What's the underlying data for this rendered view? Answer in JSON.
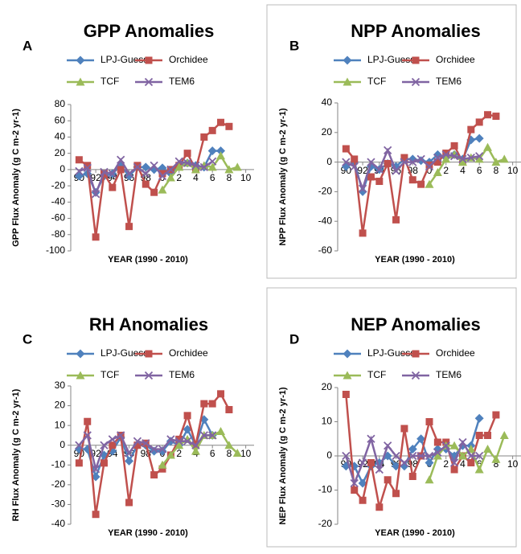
{
  "chart_data": [
    {
      "type": "line",
      "label": "A",
      "title": "GPP Anomalies",
      "x_label": "YEAR (1990 - 2010)",
      "y_label": "GPP Flux Anomaly (g C m-2 yr-1)",
      "x": [
        1990,
        1991,
        1992,
        1993,
        1994,
        1995,
        1996,
        1997,
        1998,
        1999,
        2000,
        2001,
        2002,
        2003,
        2004,
        2005,
        2006,
        2007,
        2008,
        2009
      ],
      "xlim": [
        1989,
        2011
      ],
      "xticks": [
        {
          "value": 1990,
          "label": "90"
        },
        {
          "value": 1992,
          "label": "92"
        },
        {
          "value": 1994,
          "label": "94"
        },
        {
          "value": 1996,
          "label": "96"
        },
        {
          "value": 1998,
          "label": "98"
        },
        {
          "value": 2000,
          "label": "0"
        },
        {
          "value": 2002,
          "label": "2"
        },
        {
          "value": 2004,
          "label": "4"
        },
        {
          "value": 2006,
          "label": "6"
        },
        {
          "value": 2008,
          "label": "8"
        },
        {
          "value": 2010,
          "label": "10"
        }
      ],
      "ylim": [
        -100,
        80
      ],
      "yticks": [
        -100,
        -80,
        -60,
        -40,
        -20,
        0,
        20,
        40,
        60,
        80
      ],
      "series": [
        {
          "name": "LPJ-Guess",
          "color": "#4f81bd",
          "marker": "diamond",
          "values": [
            -8,
            -5,
            -28,
            -8,
            -5,
            5,
            -8,
            3,
            3,
            0,
            2,
            -5,
            5,
            8,
            5,
            3,
            23,
            23,
            null,
            null
          ]
        },
        {
          "name": "Orchidee",
          "color": "#c0504d",
          "marker": "square",
          "values": [
            12,
            5,
            -83,
            -5,
            -22,
            0,
            -70,
            5,
            -18,
            -28,
            -5,
            0,
            5,
            20,
            0,
            40,
            48,
            58,
            53,
            null
          ]
        },
        {
          "name": "TCF",
          "color": "#9bbb59",
          "marker": "triangle",
          "values": [
            null,
            null,
            null,
            null,
            null,
            null,
            null,
            null,
            null,
            null,
            -25,
            -10,
            3,
            8,
            0,
            5,
            3,
            17,
            0,
            3
          ]
        },
        {
          "name": "TEM6",
          "color": "#8064a2",
          "marker": "cross",
          "values": [
            -2,
            2,
            -30,
            -3,
            -5,
            12,
            -5,
            3,
            -5,
            5,
            -8,
            0,
            10,
            8,
            5,
            3,
            10,
            null,
            null,
            null
          ]
        }
      ]
    },
    {
      "type": "line",
      "label": "B",
      "title": "NPP Anomalies",
      "x_label": "YEAR (1990 - 2010)",
      "y_label": "NPP Flux Anomaly (g C m-2 yr-1)",
      "x": [
        1990,
        1991,
        1992,
        1993,
        1994,
        1995,
        1996,
        1997,
        1998,
        1999,
        2000,
        2001,
        2002,
        2003,
        2004,
        2005,
        2006,
        2007,
        2008,
        2009
      ],
      "xlim": [
        1989,
        2011
      ],
      "xticks": [
        {
          "value": 1990,
          "label": "90"
        },
        {
          "value": 1992,
          "label": "92"
        },
        {
          "value": 1994,
          "label": "94"
        },
        {
          "value": 1996,
          "label": "96"
        },
        {
          "value": 1998,
          "label": "98"
        },
        {
          "value": 2000,
          "label": "0"
        },
        {
          "value": 2002,
          "label": "2"
        },
        {
          "value": 2004,
          "label": "4"
        },
        {
          "value": 2006,
          "label": "6"
        },
        {
          "value": 2008,
          "label": "8"
        },
        {
          "value": 2010,
          "label": "10"
        }
      ],
      "ylim": [
        -60,
        40
      ],
      "yticks": [
        -60,
        -40,
        -20,
        0,
        20,
        40
      ],
      "series": [
        {
          "name": "LPJ-Guess",
          "color": "#4f81bd",
          "marker": "diamond",
          "values": [
            -3,
            0,
            -20,
            -3,
            -5,
            -1,
            -3,
            2,
            2,
            1,
            0,
            5,
            3,
            5,
            2,
            15,
            16,
            null,
            null,
            null
          ]
        },
        {
          "name": "Orchidee",
          "color": "#c0504d",
          "marker": "square",
          "values": [
            9,
            2,
            -48,
            -10,
            -13,
            -1,
            -39,
            3,
            -12,
            -15,
            -2,
            0,
            6,
            11,
            0,
            22,
            27,
            32,
            31,
            null
          ]
        },
        {
          "name": "TCF",
          "color": "#9bbb59",
          "marker": "triangle",
          "values": [
            null,
            null,
            null,
            null,
            null,
            null,
            null,
            null,
            null,
            null,
            -15,
            -7,
            2,
            5,
            0,
            3,
            2,
            10,
            0,
            2
          ]
        },
        {
          "name": "TEM6",
          "color": "#8064a2",
          "marker": "cross",
          "values": [
            0,
            -3,
            -18,
            0,
            -5,
            8,
            -6,
            0,
            0,
            2,
            -3,
            3,
            5,
            4,
            2,
            3,
            4,
            null,
            null,
            null
          ]
        }
      ]
    },
    {
      "type": "line",
      "label": "C",
      "title": "RH Anomalies",
      "x_label": "YEAR (1990 - 2010)",
      "y_label": "RH Flux Anomaly (g C m-2 yr-1)",
      "x": [
        1990,
        1991,
        1992,
        1993,
        1994,
        1995,
        1996,
        1997,
        1998,
        1999,
        2000,
        2001,
        2002,
        2003,
        2004,
        2005,
        2006,
        2007,
        2008,
        2009
      ],
      "xlim": [
        1989,
        2011
      ],
      "xticks": [
        {
          "value": 1990,
          "label": "90"
        },
        {
          "value": 1992,
          "label": "92"
        },
        {
          "value": 1994,
          "label": "94"
        },
        {
          "value": 1996,
          "label": "96"
        },
        {
          "value": 1998,
          "label": "98"
        },
        {
          "value": 2000,
          "label": "0"
        },
        {
          "value": 2002,
          "label": "2"
        },
        {
          "value": 2004,
          "label": "4"
        },
        {
          "value": 2006,
          "label": "6"
        },
        {
          "value": 2008,
          "label": "8"
        },
        {
          "value": 2010,
          "label": "10"
        }
      ],
      "ylim": [
        -40,
        30
      ],
      "yticks": [
        -40,
        -30,
        -20,
        -10,
        0,
        10,
        20,
        30
      ],
      "series": [
        {
          "name": "LPJ-Guess",
          "color": "#4f81bd",
          "marker": "diamond",
          "values": [
            -2,
            -2,
            -16,
            -5,
            -3,
            4,
            -8,
            0,
            0,
            -3,
            -3,
            2,
            0,
            8,
            0,
            13,
            5,
            null,
            null,
            null
          ]
        },
        {
          "name": "Orchidee",
          "color": "#c0504d",
          "marker": "square",
          "values": [
            -9,
            12,
            -35,
            -9,
            0,
            5,
            -29,
            0,
            1,
            -15,
            -12,
            -5,
            3,
            15,
            0,
            21,
            21,
            26,
            18,
            null
          ]
        },
        {
          "name": "TCF",
          "color": "#9bbb59",
          "marker": "triangle",
          "values": [
            null,
            null,
            null,
            null,
            null,
            null,
            null,
            null,
            null,
            null,
            -10,
            -5,
            0,
            3,
            -3,
            5,
            5,
            7,
            0,
            -4
          ]
        },
        {
          "name": "TEM6",
          "color": "#8064a2",
          "marker": "cross",
          "values": [
            0,
            5,
            -12,
            0,
            3,
            5,
            -4,
            2,
            1,
            -2,
            -2,
            3,
            2,
            2,
            0,
            5,
            5,
            null,
            null,
            null
          ]
        }
      ]
    },
    {
      "type": "line",
      "label": "D",
      "title": "NEP Anomalies",
      "x_label": "YEAR (1990 - 2010)",
      "y_label": "NEP Flux Anomaly (g C m-2 yr-1)",
      "x": [
        1990,
        1991,
        1992,
        1993,
        1994,
        1995,
        1996,
        1997,
        1998,
        1999,
        2000,
        2001,
        2002,
        2003,
        2004,
        2005,
        2006,
        2007,
        2008,
        2009
      ],
      "xlim": [
        1989,
        2011
      ],
      "xticks": [
        {
          "value": 1990,
          "label": "90"
        },
        {
          "value": 1992,
          "label": "92"
        },
        {
          "value": 1994,
          "label": "94"
        },
        {
          "value": 1996,
          "label": "96"
        },
        {
          "value": 1998,
          "label": "98"
        },
        {
          "value": 2000,
          "label": "0"
        },
        {
          "value": 2002,
          "label": "2"
        },
        {
          "value": 2004,
          "label": "4"
        },
        {
          "value": 2006,
          "label": "6"
        },
        {
          "value": 2008,
          "label": "8"
        },
        {
          "value": 2010,
          "label": "10"
        }
      ],
      "ylim": [
        -20,
        20
      ],
      "yticks": [
        -20,
        -10,
        0,
        10,
        20
      ],
      "series": [
        {
          "name": "LPJ-Guess",
          "color": "#4f81bd",
          "marker": "diamond",
          "values": [
            -3,
            -3,
            -8,
            -3,
            -2,
            0,
            -3,
            -3,
            2,
            5,
            -2,
            2,
            2,
            0,
            3,
            3,
            11,
            null,
            null,
            null
          ]
        },
        {
          "name": "Orchidee",
          "color": "#c0504d",
          "marker": "square",
          "values": [
            18,
            -10,
            -13,
            -2,
            -15,
            -7,
            -11,
            8,
            -6,
            0,
            10,
            4,
            4,
            -4,
            0,
            -2,
            6,
            6,
            12,
            null
          ]
        },
        {
          "name": "TCF",
          "color": "#9bbb59",
          "marker": "triangle",
          "values": [
            null,
            null,
            null,
            null,
            null,
            null,
            null,
            null,
            null,
            null,
            -7,
            0,
            3,
            3,
            0,
            2,
            -4,
            2,
            -1,
            6
          ]
        },
        {
          "name": "TEM6",
          "color": "#8064a2",
          "marker": "cross",
          "values": [
            0,
            -8,
            -2,
            5,
            -4,
            3,
            0,
            -2,
            0,
            0,
            0,
            1,
            3,
            -2,
            4,
            0,
            0,
            null,
            null,
            null
          ]
        }
      ]
    }
  ]
}
